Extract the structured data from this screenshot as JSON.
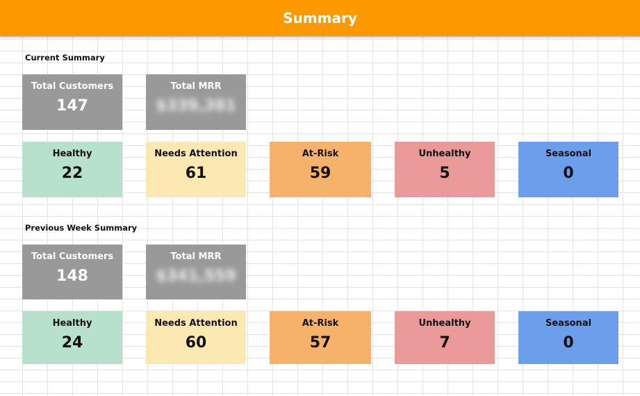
{
  "header": {
    "title": "Summary"
  },
  "colors": {
    "banner": "#ff9900",
    "gray_card": "#999999",
    "healthy": "#b7e1cd",
    "needs_attention": "#fce8b2",
    "at_risk": "#f6b26b",
    "unhealthy": "#ea9999",
    "seasonal": "#6d9eeb"
  },
  "current": {
    "label": "Current Summary",
    "total_customers": {
      "title": "Total Customers",
      "value": "147"
    },
    "total_mrr": {
      "title": "Total MRR",
      "value": "$339,381"
    },
    "healthy": {
      "title": "Healthy",
      "value": "22"
    },
    "needs_attention": {
      "title": "Needs Attention",
      "value": "61"
    },
    "at_risk": {
      "title": "At-Risk",
      "value": "59"
    },
    "unhealthy": {
      "title": "Unhealthy",
      "value": "5"
    },
    "seasonal": {
      "title": "Seasonal",
      "value": "0"
    }
  },
  "previous": {
    "label": "Previous Week Summary",
    "total_customers": {
      "title": "Total Customers",
      "value": "148"
    },
    "total_mrr": {
      "title": "Total MRR",
      "value": "$341,559"
    },
    "healthy": {
      "title": "Healthy",
      "value": "24"
    },
    "needs_attention": {
      "title": "Needs Attention",
      "value": "60"
    },
    "at_risk": {
      "title": "At-Risk",
      "value": "57"
    },
    "unhealthy": {
      "title": "Unhealthy",
      "value": "7"
    },
    "seasonal": {
      "title": "Seasonal",
      "value": "0"
    }
  }
}
